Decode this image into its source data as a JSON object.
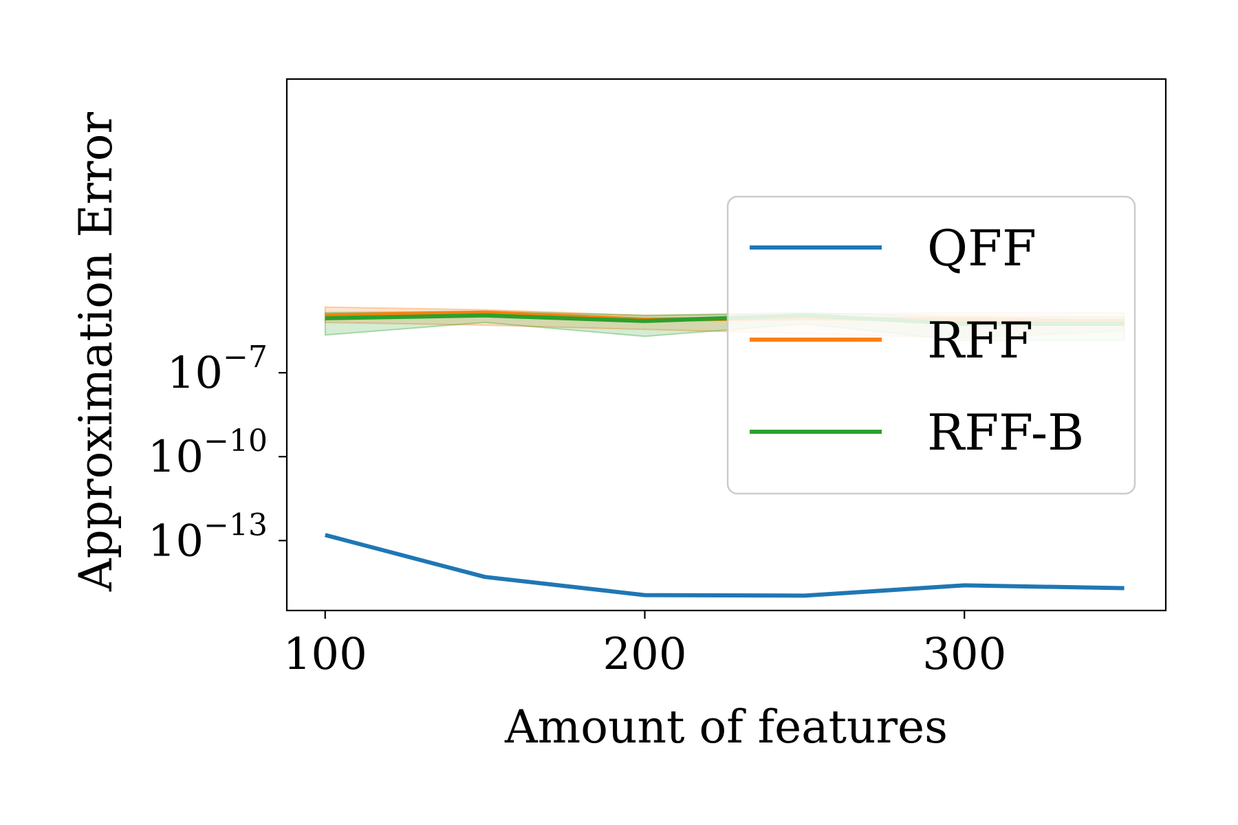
{
  "chart_data": {
    "type": "line",
    "title": "",
    "xlabel": "Amount of features",
    "ylabel": "Approximation Error",
    "x": [
      100,
      150,
      200,
      250,
      300,
      350
    ],
    "xlim": [
      88,
      363
    ],
    "ylim_exp": [
      -15.5,
      3.5
    ],
    "yscale": "log",
    "xticks": [
      100,
      200,
      300
    ],
    "xtick_labels": [
      "100",
      "200",
      "300"
    ],
    "yticks": [
      {
        "base": "10",
        "exp": "−7",
        "value_exp": -7
      },
      {
        "base": "10",
        "exp": "−10",
        "value_exp": -10
      },
      {
        "base": "10",
        "exp": "−13",
        "value_exp": -13
      }
    ],
    "grid": false,
    "legend": "upper-right",
    "series": [
      {
        "name": "QFF",
        "color": "#1f77b4",
        "values_log10": [
          -12.8,
          -14.3,
          -14.95,
          -14.97,
          -14.6,
          -14.7
        ]
      },
      {
        "name": "RFF",
        "color": "#ff7f0e",
        "values_log10": [
          -4.95,
          -4.85,
          -5.1,
          -5.05,
          -5.1,
          -5.15
        ],
        "band_log10": {
          "lower": [
            -5.2,
            -5.3,
            -5.45,
            -5.6,
            -5.75,
            -5.5
          ],
          "upper": [
            -4.65,
            -4.75,
            -4.95,
            -4.9,
            -4.85,
            -4.85
          ]
        }
      },
      {
        "name": "RFF-B",
        "color": "#2ca02c",
        "values_log10": [
          -5.05,
          -4.95,
          -5.15,
          -4.95,
          -5.25,
          -5.25
        ],
        "band_log10": {
          "lower": [
            -5.65,
            -5.2,
            -5.7,
            -5.25,
            -5.85,
            -5.85
          ],
          "upper": [
            -4.85,
            -4.8,
            -4.95,
            -4.85,
            -5.0,
            -5.0
          ]
        }
      }
    ]
  }
}
